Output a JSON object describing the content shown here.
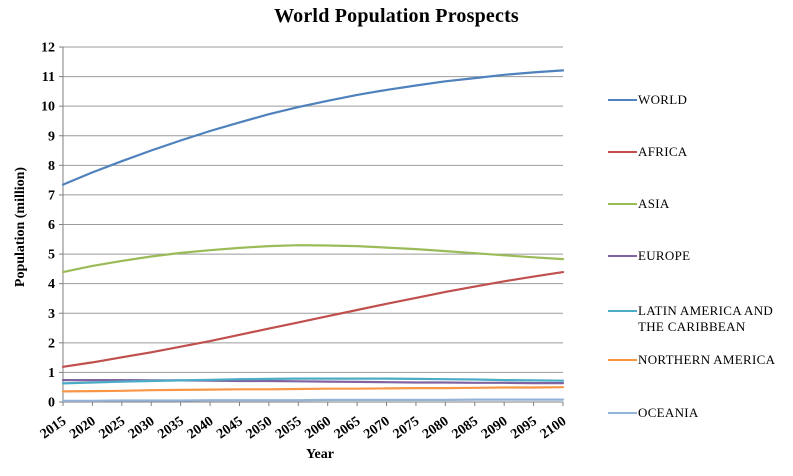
{
  "chart_data": {
    "type": "line",
    "title": "World Population Prospects",
    "xlabel": "Year",
    "ylabel": "Population (million)",
    "x": [
      2015,
      2020,
      2025,
      2030,
      2035,
      2040,
      2045,
      2050,
      2055,
      2060,
      2065,
      2070,
      2075,
      2080,
      2085,
      2090,
      2095,
      2100
    ],
    "ylim": [
      0,
      12
    ],
    "ytick_step": 1,
    "grid": "horizontal",
    "legend_position": "right",
    "grid_color": "#9b9b9b",
    "axis_color": "#7f7f7f",
    "text_color": "#000000",
    "series": [
      {
        "name": "WORLD",
        "color": "#4F81BD",
        "values": [
          7.35,
          7.76,
          8.14,
          8.5,
          8.84,
          9.16,
          9.45,
          9.73,
          9.97,
          10.18,
          10.38,
          10.55,
          10.7,
          10.84,
          10.95,
          11.06,
          11.14,
          11.21
        ]
      },
      {
        "name": "AFRICA",
        "color": "#C0504D",
        "values": [
          1.19,
          1.34,
          1.51,
          1.68,
          1.87,
          2.06,
          2.27,
          2.48,
          2.69,
          2.9,
          3.11,
          3.32,
          3.52,
          3.72,
          3.9,
          4.08,
          4.24,
          4.39
        ]
      },
      {
        "name": "ASIA",
        "color": "#9BBB59",
        "values": [
          4.39,
          4.6,
          4.77,
          4.92,
          5.04,
          5.13,
          5.21,
          5.27,
          5.3,
          5.29,
          5.27,
          5.22,
          5.17,
          5.1,
          5.03,
          4.96,
          4.89,
          4.83
        ]
      },
      {
        "name": "EUROPE",
        "color": "#8064A2",
        "values": [
          0.74,
          0.74,
          0.74,
          0.73,
          0.73,
          0.72,
          0.71,
          0.71,
          0.7,
          0.69,
          0.68,
          0.67,
          0.66,
          0.66,
          0.65,
          0.65,
          0.64,
          0.64
        ]
      },
      {
        "name": "LATIN AMERICA AND THE CARIBBEAN",
        "color": "#4BACC6",
        "values": [
          0.63,
          0.66,
          0.69,
          0.71,
          0.73,
          0.75,
          0.77,
          0.78,
          0.79,
          0.79,
          0.79,
          0.79,
          0.78,
          0.77,
          0.76,
          0.74,
          0.73,
          0.72
        ]
      },
      {
        "name": "NORTHERN AMERICA",
        "color": "#F79646",
        "values": [
          0.36,
          0.37,
          0.38,
          0.4,
          0.41,
          0.42,
          0.43,
          0.43,
          0.44,
          0.45,
          0.45,
          0.46,
          0.47,
          0.47,
          0.48,
          0.49,
          0.49,
          0.5
        ]
      },
      {
        "name": "OCEANIA",
        "color": "#95B3D7",
        "values": [
          0.04,
          0.04,
          0.05,
          0.05,
          0.05,
          0.06,
          0.06,
          0.06,
          0.06,
          0.07,
          0.07,
          0.07,
          0.07,
          0.07,
          0.08,
          0.08,
          0.08,
          0.08
        ]
      }
    ]
  }
}
